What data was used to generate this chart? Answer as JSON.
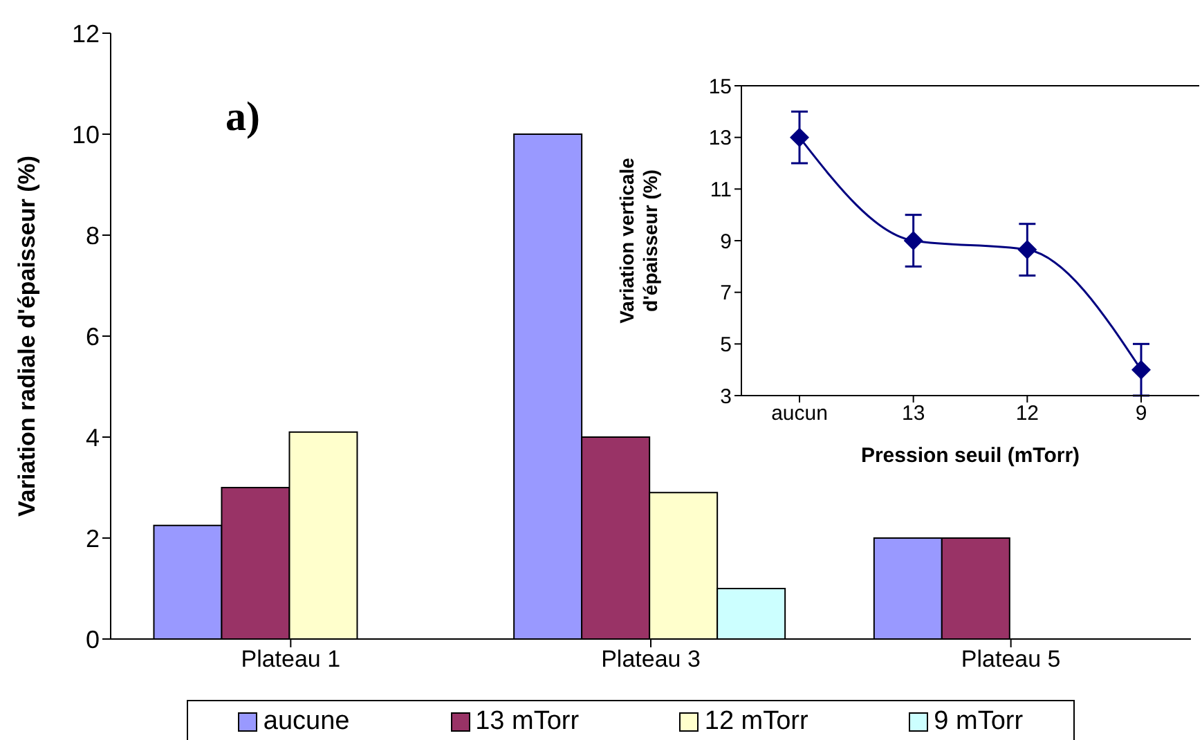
{
  "chart_data": [
    {
      "type": "bar",
      "ylabel": "Variation radiale d'épaisseur (%)",
      "categories": [
        "Plateau 1",
        "Plateau 3",
        "Plateau 5"
      ],
      "series": [
        {
          "name": "aucune",
          "color": "#9999ff",
          "values": [
            2.25,
            10,
            2
          ]
        },
        {
          "name": "13 mTorr",
          "color": "#993366",
          "values": [
            3,
            4,
            2
          ]
        },
        {
          "name": "12 mTorr",
          "color": "#ffffcc",
          "values": [
            4.1,
            2.9,
            null
          ]
        },
        {
          "name": "9 mTorr",
          "color": "#ccffff",
          "values": [
            null,
            1,
            null
          ]
        }
      ],
      "ylim": [
        0,
        12
      ],
      "yticks": [
        0,
        2,
        4,
        6,
        8,
        10,
        12
      ],
      "legend": "bottom",
      "annotations": [
        "a)"
      ]
    },
    {
      "type": "line",
      "xlabel": "Pression seuil (mTorr)",
      "ylabel": "Variation verticale d'épaisseur (%)",
      "categories": [
        "aucun",
        "13",
        "12",
        "9"
      ],
      "series": [
        {
          "color": "#000080",
          "values": [
            13,
            9,
            8.65,
            4
          ],
          "errors": [
            1,
            1,
            1,
            1
          ]
        }
      ],
      "ylim": [
        3,
        15
      ],
      "yticks": [
        3,
        5,
        7,
        9,
        11,
        13,
        15
      ],
      "marker": "diamond",
      "line_style": "solid"
    }
  ]
}
